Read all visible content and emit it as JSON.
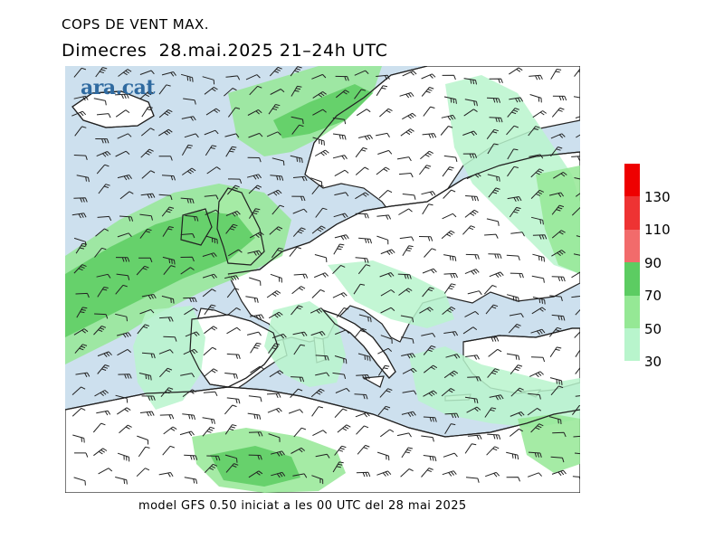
{
  "header": {
    "title": "COPS DE VENT MAX.",
    "subtitle": "Dimecres  28.mai.2025 21–24h UTC"
  },
  "logo": {
    "text": "ara.cat"
  },
  "footer": {
    "text": "model GFS 0.50 iniciat a les 00 UTC del 28 mai 2025"
  },
  "legend": {
    "unit_note": "",
    "bins": [
      {
        "from": 130,
        "color": "#ee0000"
      },
      {
        "from": 110,
        "color": "#ee3333"
      },
      {
        "from": 90,
        "color": "#f26b6b"
      },
      {
        "from": 70,
        "color": "#5ccc62"
      },
      {
        "from": 50,
        "color": "#95e895"
      },
      {
        "from": 30,
        "color": "#b8f5cc"
      }
    ],
    "labels": [
      "130",
      "110",
      "90",
      "70",
      "50",
      "30"
    ]
  },
  "map": {
    "region": "Europe and Mediterranean",
    "colors": {
      "sea": "#cde0ee",
      "land": "#ffffff",
      "coast": "#222222",
      "barb": "#222222"
    }
  }
}
